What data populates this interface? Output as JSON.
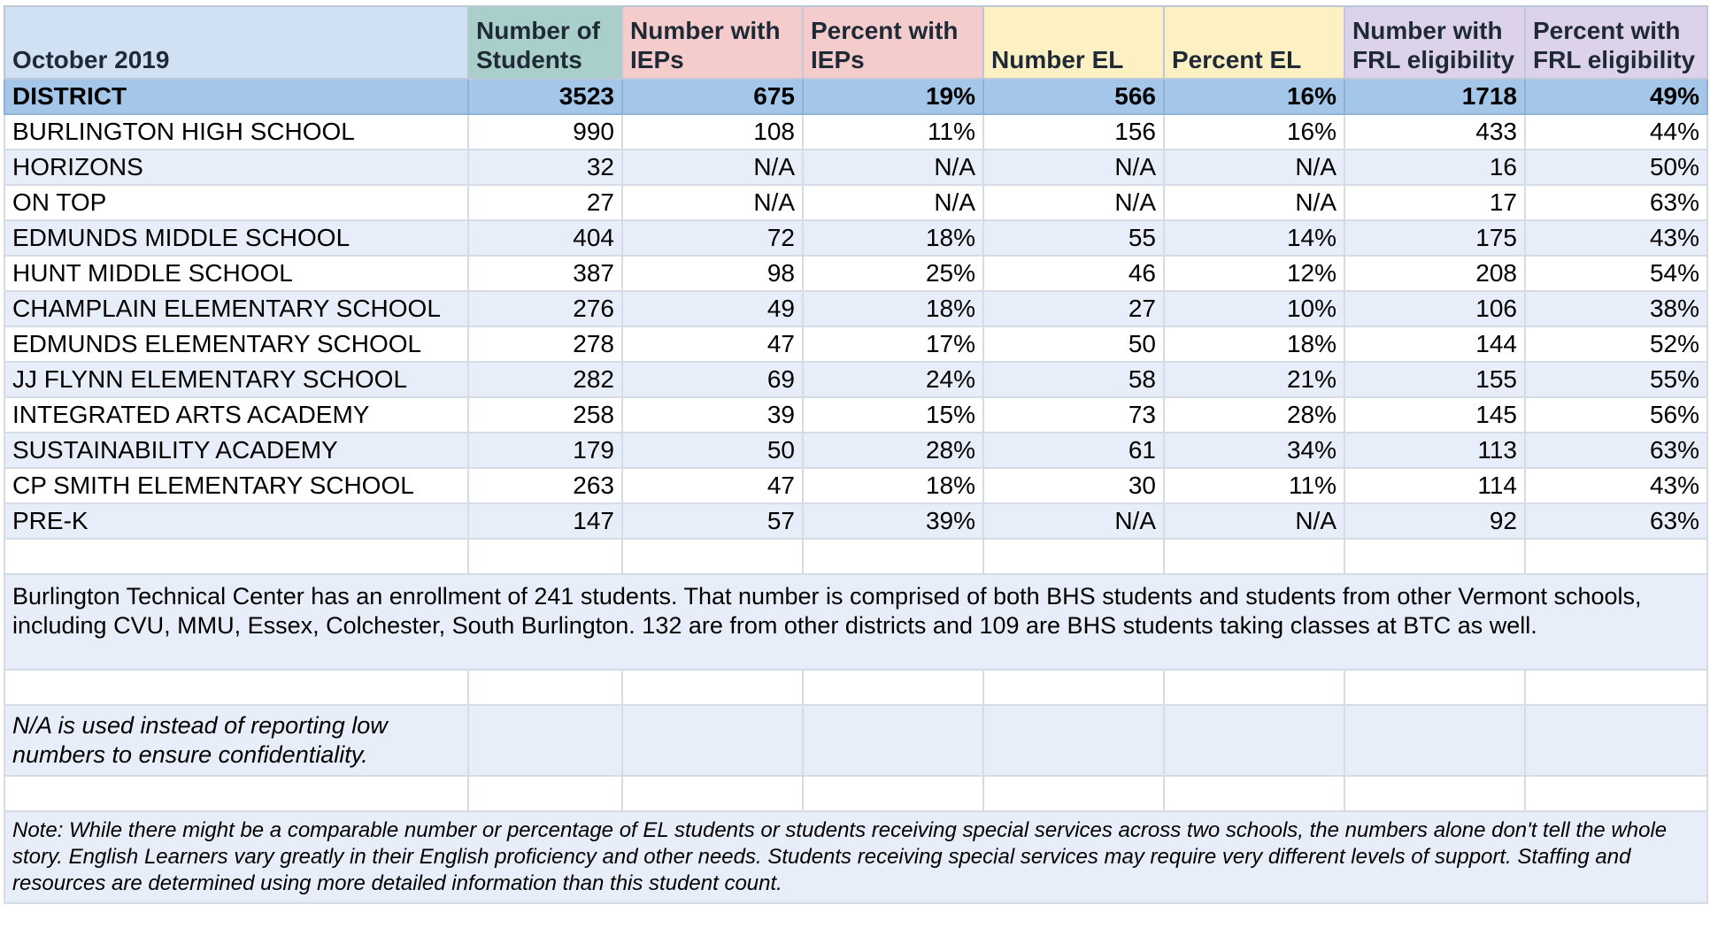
{
  "table": {
    "headers": {
      "period": "October 2019",
      "students": "Number of Students",
      "iep_count": "Number with IEPs",
      "iep_pct": "Percent with IEPs",
      "el_count": "Number EL",
      "el_pct": "Percent EL",
      "frl_count": "Number with FRL eligibility",
      "frl_pct": "Percent with FRL eligibility"
    },
    "header_colors": {
      "label": "#cfe1f2",
      "students": "#a9cfca",
      "iep": "#f4cccc",
      "el": "#fdf1c4",
      "frl": "#dcd3ea",
      "district_row": "#a4c6e8",
      "alt_row": "#e8eef9"
    },
    "district": [
      "DISTRICT",
      "3523",
      "675",
      "19%",
      "566",
      "16%",
      "1718",
      "49%"
    ],
    "rows": [
      [
        "BURLINGTON HIGH SCHOOL",
        "990",
        "108",
        "11%",
        "156",
        "16%",
        "433",
        "44%"
      ],
      [
        "HORIZONS",
        "32",
        "N/A",
        "N/A",
        "N/A",
        "N/A",
        "16",
        "50%"
      ],
      [
        "ON TOP",
        "27",
        "N/A",
        "N/A",
        "N/A",
        "N/A",
        "17",
        "63%"
      ],
      [
        "EDMUNDS MIDDLE SCHOOL",
        "404",
        "72",
        "18%",
        "55",
        "14%",
        "175",
        "43%"
      ],
      [
        "HUNT MIDDLE SCHOOL",
        "387",
        "98",
        "25%",
        "46",
        "12%",
        "208",
        "54%"
      ],
      [
        "CHAMPLAIN ELEMENTARY SCHOOL",
        "276",
        "49",
        "18%",
        "27",
        "10%",
        "106",
        "38%"
      ],
      [
        "EDMUNDS ELEMENTARY SCHOOL",
        "278",
        "47",
        "17%",
        "50",
        "18%",
        "144",
        "52%"
      ],
      [
        "JJ FLYNN ELEMENTARY SCHOOL",
        "282",
        "69",
        "24%",
        "58",
        "21%",
        "155",
        "55%"
      ],
      [
        "INTEGRATED ARTS ACADEMY",
        "258",
        "39",
        "15%",
        "73",
        "28%",
        "145",
        "56%"
      ],
      [
        "SUSTAINABILITY ACADEMY",
        "179",
        "50",
        "28%",
        "61",
        "34%",
        "113",
        "63%"
      ],
      [
        "CP SMITH ELEMENTARY SCHOOL",
        "263",
        "47",
        "18%",
        "30",
        "11%",
        "114",
        "43%"
      ],
      [
        "PRE-K",
        "147",
        "57",
        "39%",
        "N/A",
        "N/A",
        "92",
        "63%"
      ]
    ]
  },
  "notes": {
    "enrollment": "Burlington Technical Center has an enrollment of 241 students. That number is comprised of both BHS students and students from other Vermont schools, including CVU, MMU, Essex, Colchester, South Burlington. 132 are from other districts and 109 are BHS students taking classes at BTC as well.",
    "na_note": "N/A is used instead of reporting low numbers to ensure confidentiality.",
    "footnote": "Note: While there might be a comparable number or percentage of EL students or students receiving special services across two schools, the numbers alone don't tell the whole story. English Learners vary greatly in their English proficiency and other needs. Students receiving special services may require very different levels of support. Staffing and resources are determined using more detailed information than this student count."
  }
}
